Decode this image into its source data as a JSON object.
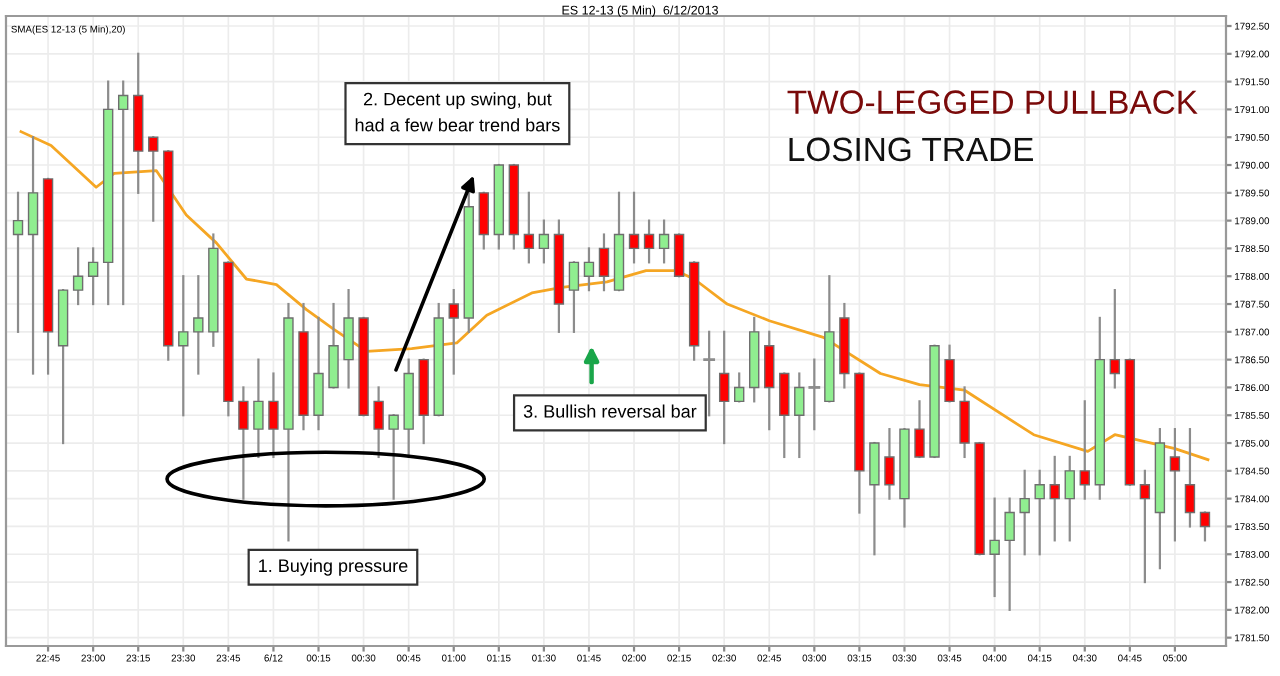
{
  "chart_data": {
    "type": "candlestick",
    "title": "TWO-LEGGED PULLBACK",
    "subtitle": "LOSING TRADE",
    "x": [
      "2013-06-11T22:35",
      "2013-06-11T22:40",
      "2013-06-11T22:45",
      "2013-06-11T22:50",
      "2013-06-11T22:55",
      "2013-06-11T23:00",
      "2013-06-11T23:05",
      "2013-06-11T23:10",
      "2013-06-11T23:15",
      "2013-06-11T23:20",
      "2013-06-11T23:25",
      "2013-06-11T23:30",
      "2013-06-11T23:35",
      "2013-06-11T23:40",
      "2013-06-11T23:45",
      "2013-06-11T23:50",
      "2013-06-11T23:55",
      "2013-06-12T00:00",
      "2013-06-12T00:05",
      "2013-06-12T00:10",
      "2013-06-12T00:15",
      "2013-06-12T00:20",
      "2013-06-12T00:25",
      "2013-06-12T00:30",
      "2013-06-12T00:35",
      "2013-06-12T00:40",
      "2013-06-12T00:45",
      "2013-06-12T00:50",
      "2013-06-12T00:55",
      "2013-06-12T01:00",
      "2013-06-12T01:05",
      "2013-06-12T01:10",
      "2013-06-12T01:15",
      "2013-06-12T01:20",
      "2013-06-12T01:25",
      "2013-06-12T01:30",
      "2013-06-12T01:35",
      "2013-06-12T01:40",
      "2013-06-12T01:45",
      "2013-06-12T01:50",
      "2013-06-12T01:55",
      "2013-06-12T02:00",
      "2013-06-12T02:05",
      "2013-06-12T02:10",
      "2013-06-12T02:15",
      "2013-06-12T02:20",
      "2013-06-12T02:25",
      "2013-06-12T02:30",
      "2013-06-12T02:35",
      "2013-06-12T02:40",
      "2013-06-12T02:45",
      "2013-06-12T02:50",
      "2013-06-12T02:55",
      "2013-06-12T03:00",
      "2013-06-12T03:05",
      "2013-06-12T03:10",
      "2013-06-12T03:15",
      "2013-06-12T03:20",
      "2013-06-12T03:25",
      "2013-06-12T03:30",
      "2013-06-12T03:35",
      "2013-06-12T03:40",
      "2013-06-12T03:45",
      "2013-06-12T03:50",
      "2013-06-12T03:55",
      "2013-06-12T04:00",
      "2013-06-12T04:05",
      "2013-06-12T04:10",
      "2013-06-12T04:15",
      "2013-06-12T04:20",
      "2013-06-12T04:25",
      "2013-06-12T04:30",
      "2013-06-12T04:35",
      "2013-06-12T04:40",
      "2013-06-12T04:45",
      "2013-06-12T04:50",
      "2013-06-12T04:55",
      "2013-06-12T05:00",
      "2013-06-12T05:05",
      "2013-06-12T05:10"
    ],
    "ohlc": [
      [
        1788.75,
        1789.5,
        1787.0,
        1789.0
      ],
      [
        1788.75,
        1790.5,
        1786.25,
        1789.5
      ],
      [
        1789.75,
        1789.75,
        1786.25,
        1787.0
      ],
      [
        1786.75,
        1787.75,
        1785.0,
        1787.75
      ],
      [
        1787.75,
        1788.5,
        1787.5,
        1788.0
      ],
      [
        1788.0,
        1788.5,
        1787.5,
        1788.25
      ],
      [
        1788.25,
        1791.5,
        1787.5,
        1791.0
      ],
      [
        1791.0,
        1791.5,
        1787.5,
        1791.25
      ],
      [
        1791.25,
        1792.0,
        1789.5,
        1790.25
      ],
      [
        1790.5,
        1790.5,
        1789.0,
        1790.25
      ],
      [
        1790.25,
        1790.25,
        1786.5,
        1786.75
      ],
      [
        1786.75,
        1788.0,
        1785.5,
        1787.0
      ],
      [
        1787.0,
        1788.0,
        1786.25,
        1787.25
      ],
      [
        1787.0,
        1788.75,
        1786.75,
        1788.5
      ],
      [
        1788.25,
        1788.25,
        1785.5,
        1785.75
      ],
      [
        1785.75,
        1786.0,
        1784.0,
        1785.25
      ],
      [
        1785.25,
        1786.5,
        1784.75,
        1785.75
      ],
      [
        1785.75,
        1786.25,
        1784.75,
        1785.25
      ],
      [
        1785.25,
        1787.5,
        1783.25,
        1787.25
      ],
      [
        1787.0,
        1787.5,
        1785.25,
        1785.5
      ],
      [
        1785.5,
        1787.25,
        1785.25,
        1786.25
      ],
      [
        1786.0,
        1787.5,
        1786.0,
        1786.75
      ],
      [
        1786.5,
        1787.75,
        1786.0,
        1787.25
      ],
      [
        1787.25,
        1787.25,
        1785.5,
        1785.5
      ],
      [
        1785.75,
        1786.0,
        1784.75,
        1785.25
      ],
      [
        1785.25,
        1785.5,
        1784.0,
        1785.5
      ],
      [
        1785.25,
        1786.5,
        1784.75,
        1786.25
      ],
      [
        1786.5,
        1786.5,
        1785.0,
        1785.5
      ],
      [
        1785.5,
        1787.5,
        1785.5,
        1787.25
      ],
      [
        1787.5,
        1787.75,
        1786.25,
        1787.25
      ],
      [
        1787.25,
        1789.5,
        1787.0,
        1789.25
      ],
      [
        1789.5,
        1789.5,
        1788.5,
        1788.75
      ],
      [
        1788.75,
        1790.0,
        1788.5,
        1790.0
      ],
      [
        1790.0,
        1790.0,
        1788.5,
        1788.75
      ],
      [
        1788.75,
        1789.5,
        1788.25,
        1788.5
      ],
      [
        1788.5,
        1789.0,
        1788.25,
        1788.75
      ],
      [
        1788.75,
        1789.0,
        1787.0,
        1787.5
      ],
      [
        1787.75,
        1788.25,
        1787.0,
        1788.25
      ],
      [
        1788.0,
        1788.5,
        1787.75,
        1788.25
      ],
      [
        1788.5,
        1788.75,
        1787.75,
        1788.0
      ],
      [
        1787.75,
        1789.5,
        1787.75,
        1788.75
      ],
      [
        1788.75,
        1789.5,
        1788.25,
        1788.5
      ],
      [
        1788.75,
        1789.0,
        1788.25,
        1788.5
      ],
      [
        1788.5,
        1789.0,
        1788.25,
        1788.75
      ],
      [
        1788.75,
        1788.75,
        1788.0,
        1788.0
      ],
      [
        1788.25,
        1788.25,
        1786.5,
        1786.75
      ],
      [
        1786.5,
        1787.0,
        1785.5,
        1786.5
      ],
      [
        1786.25,
        1787.0,
        1785.0,
        1785.75
      ],
      [
        1785.75,
        1786.25,
        1785.75,
        1786.0
      ],
      [
        1786.0,
        1787.25,
        1785.75,
        1787.0
      ],
      [
        1786.75,
        1787.0,
        1785.25,
        1786.0
      ],
      [
        1786.25,
        1786.25,
        1784.75,
        1785.5
      ],
      [
        1785.5,
        1786.25,
        1784.75,
        1786.0
      ],
      [
        1786.0,
        1786.5,
        1785.25,
        1786.0
      ],
      [
        1785.75,
        1788.0,
        1785.75,
        1787.0
      ],
      [
        1787.25,
        1787.5,
        1786.0,
        1786.25
      ],
      [
        1786.25,
        1786.25,
        1783.75,
        1784.5
      ],
      [
        1784.25,
        1785.0,
        1783.0,
        1785.0
      ],
      [
        1784.75,
        1785.25,
        1784.0,
        1784.25
      ],
      [
        1784.0,
        1785.25,
        1783.5,
        1785.25
      ],
      [
        1785.25,
        1785.75,
        1784.75,
        1784.75
      ],
      [
        1784.75,
        1786.75,
        1784.75,
        1786.75
      ],
      [
        1786.5,
        1786.75,
        1785.75,
        1785.75
      ],
      [
        1785.75,
        1786.0,
        1784.75,
        1785.0
      ],
      [
        1785.0,
        1785.0,
        1783.0,
        1783.0
      ],
      [
        1783.0,
        1784.0,
        1782.25,
        1783.25
      ],
      [
        1783.25,
        1784.0,
        1782.0,
        1783.75
      ],
      [
        1783.75,
        1784.5,
        1783.0,
        1784.0
      ],
      [
        1784.0,
        1784.5,
        1783.0,
        1784.25
      ],
      [
        1784.25,
        1784.75,
        1783.25,
        1784.0
      ],
      [
        1784.0,
        1784.75,
        1783.25,
        1784.5
      ],
      [
        1784.5,
        1785.75,
        1784.0,
        1784.25
      ],
      [
        1784.25,
        1787.25,
        1784.0,
        1786.5
      ],
      [
        1786.5,
        1787.75,
        1786.0,
        1786.25
      ],
      [
        1786.5,
        1786.5,
        1784.25,
        1784.25
      ],
      [
        1784.25,
        1784.5,
        1782.5,
        1784.0
      ],
      [
        1783.75,
        1785.25,
        1782.75,
        1785.0
      ],
      [
        1784.75,
        1785.25,
        1783.25,
        1784.5
      ],
      [
        1784.25,
        1785.25,
        1783.5,
        1783.75
      ],
      [
        1783.75,
        1783.75,
        1783.25,
        1783.5
      ]
    ],
    "colors": [
      "#90ee90",
      "#90ee90",
      "#ff0000",
      "#90ee90",
      "#90ee90",
      "#90ee90",
      "#90ee90",
      "#90ee90",
      "#ff0000",
      "#ff0000",
      "#ff0000",
      "#90ee90",
      "#90ee90",
      "#90ee90",
      "#ff0000",
      "#ff0000",
      "#90ee90",
      "#ff0000",
      "#90ee90",
      "#ff0000",
      "#90ee90",
      "#90ee90",
      "#90ee90",
      "#ff0000",
      "#ff0000",
      "#90ee90",
      "#90ee90",
      "#ff0000",
      "#90ee90",
      "#ff0000",
      "#90ee90",
      "#ff0000",
      "#90ee90",
      "#ff0000",
      "#ff0000",
      "#90ee90",
      "#ff0000",
      "#90ee90",
      "#90ee90",
      "#ff0000",
      "#90ee90",
      "#ff0000",
      "#ff0000",
      "#90ee90",
      "#ff0000",
      "#ff0000",
      "#8c8c8c",
      "#ff0000",
      "#90ee90",
      "#90ee90",
      "#ff0000",
      "#ff0000",
      "#90ee90",
      "#8c8c8c",
      "#90ee90",
      "#ff0000",
      "#ff0000",
      "#90ee90",
      "#ff0000",
      "#90ee90",
      "#ff0000",
      "#90ee90",
      "#ff0000",
      "#ff0000",
      "#ff0000",
      "#90ee90",
      "#90ee90",
      "#90ee90",
      "#90ee90",
      "#ff0000",
      "#90ee90",
      "#ff0000",
      "#90ee90",
      "#ff0000",
      "#ff0000",
      "#ff0000",
      "#90ee90",
      "#ff0000",
      "#ff0000",
      "#ff0000"
    ],
    "series": [
      {
        "name": "SMA(ES 12-13 (5 Min),20)",
        "type": "line",
        "color": "#f5a623",
        "x": [
          "2013-06-11T22:36",
          "2013-06-11T22:46",
          "2013-06-11T23:01",
          "2013-06-11T23:07",
          "2013-06-11T23:21",
          "2013-06-11T23:31",
          "2013-06-11T23:41",
          "2013-06-11T23:51",
          "2013-06-12T00:01",
          "2013-06-12T00:11",
          "2013-06-12T00:20",
          "2013-06-12T00:31",
          "2013-06-12T00:46",
          "2013-06-12T01:01",
          "2013-06-12T01:11",
          "2013-06-12T01:26",
          "2013-06-12T01:36",
          "2013-06-12T01:51",
          "2013-06-12T02:04",
          "2013-06-12T02:14",
          "2013-06-12T02:20",
          "2013-06-12T02:31",
          "2013-06-12T02:45",
          "2013-06-12T03:03",
          "2013-06-12T03:22",
          "2013-06-12T03:35",
          "2013-06-12T03:50",
          "2013-06-12T04:13",
          "2013-06-12T04:31",
          "2013-06-12T04:40",
          "2013-06-12T05:00",
          "2013-06-12T05:11"
        ],
        "values": [
          1790.6,
          1790.35,
          1789.6,
          1789.85,
          1789.9,
          1789.1,
          1788.6,
          1787.95,
          1787.85,
          1787.4,
          1787.05,
          1786.65,
          1786.7,
          1786.8,
          1787.3,
          1787.7,
          1787.8,
          1787.9,
          1788.1,
          1788.1,
          1787.95,
          1787.5,
          1787.2,
          1786.9,
          1786.25,
          1786.05,
          1785.95,
          1785.15,
          1784.85,
          1785.15,
          1784.9,
          1784.7
        ]
      }
    ],
    "xlim": [
      "2013-06-11T22:31",
      "2013-06-12T05:17"
    ],
    "xticks": [
      {
        "value": "2013-06-11T22:45",
        "label": "22:45"
      },
      {
        "value": "2013-06-11T23:00",
        "label": "23:00"
      },
      {
        "value": "2013-06-11T23:15",
        "label": "23:15"
      },
      {
        "value": "2013-06-11T23:30",
        "label": "23:30"
      },
      {
        "value": "2013-06-11T23:45",
        "label": "23:45"
      },
      {
        "value": "2013-06-12T00:00",
        "label": "6/12"
      },
      {
        "value": "2013-06-12T00:15",
        "label": "00:15"
      },
      {
        "value": "2013-06-12T00:30",
        "label": "00:30"
      },
      {
        "value": "2013-06-12T00:45",
        "label": "00:45"
      },
      {
        "value": "2013-06-12T01:00",
        "label": "01:00"
      },
      {
        "value": "2013-06-12T01:15",
        "label": "01:15"
      },
      {
        "value": "2013-06-12T01:30",
        "label": "01:30"
      },
      {
        "value": "2013-06-12T01:45",
        "label": "01:45"
      },
      {
        "value": "2013-06-12T02:00",
        "label": "02:00"
      },
      {
        "value": "2013-06-12T02:15",
        "label": "02:15"
      },
      {
        "value": "2013-06-12T02:30",
        "label": "02:30"
      },
      {
        "value": "2013-06-12T02:45",
        "label": "02:45"
      },
      {
        "value": "2013-06-12T03:00",
        "label": "03:00"
      },
      {
        "value": "2013-06-12T03:15",
        "label": "03:15"
      },
      {
        "value": "2013-06-12T03:30",
        "label": "03:30"
      },
      {
        "value": "2013-06-12T03:45",
        "label": "03:45"
      },
      {
        "value": "2013-06-12T04:00",
        "label": "04:00"
      },
      {
        "value": "2013-06-12T04:15",
        "label": "04:15"
      },
      {
        "value": "2013-06-12T04:30",
        "label": "04:30"
      },
      {
        "value": "2013-06-12T04:45",
        "label": "04:45"
      },
      {
        "value": "2013-06-12T05:00",
        "label": "05:00"
      }
    ],
    "ylim": [
      1781.35,
      1792.68
    ],
    "yticks": [
      {
        "value": 1781.5,
        "label": "1781.50"
      },
      {
        "value": 1782,
        "label": "1782.00"
      },
      {
        "value": 1782.5,
        "label": "1782.50"
      },
      {
        "value": 1783,
        "label": "1783.00"
      },
      {
        "value": 1783.5,
        "label": "1783.50"
      },
      {
        "value": 1784,
        "label": "1784.00"
      },
      {
        "value": 1784.5,
        "label": "1784.50"
      },
      {
        "value": 1785,
        "label": "1785.00"
      },
      {
        "value": 1785.5,
        "label": "1785.50"
      },
      {
        "value": 1786,
        "label": "1786.00"
      },
      {
        "value": 1786.5,
        "label": "1786.50"
      },
      {
        "value": 1787,
        "label": "1787.00"
      },
      {
        "value": 1787.5,
        "label": "1787.50"
      },
      {
        "value": 1788,
        "label": "1788.00"
      },
      {
        "value": 1788.5,
        "label": "1788.50"
      },
      {
        "value": 1789,
        "label": "1789.00"
      },
      {
        "value": 1789.5,
        "label": "1789.50"
      },
      {
        "value": 1790,
        "label": "1790.00"
      },
      {
        "value": 1790.5,
        "label": "1790.50"
      },
      {
        "value": 1791,
        "label": "1791.00"
      },
      {
        "value": 1791.5,
        "label": "1791.50"
      },
      {
        "value": 1792,
        "label": "1792.00"
      },
      {
        "value": 1792.5,
        "label": "1792.50"
      }
    ],
    "grid": true,
    "annotations": [
      "ES 12-13 (5 Min)  6/12/2013",
      "1. Buying pressure",
      "2. Decent up swing, but\nhad a few bear trend bars",
      "3. Bullish reversal bar"
    ]
  }
}
